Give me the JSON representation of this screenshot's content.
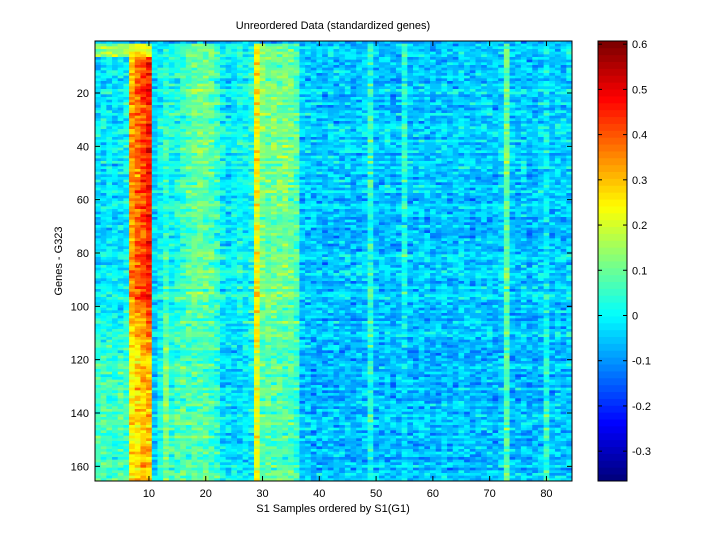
{
  "chart_data": {
    "type": "heatmap",
    "title": "Unreordered Data (standardized genes)",
    "xlabel": "S1 Samples ordered by S1(G1)",
    "ylabel": "Genes - G323",
    "n_columns": 84,
    "n_rows": 165,
    "xlim": [
      0.5,
      84.5
    ],
    "ylim": [
      0.5,
      165.5
    ],
    "x_ticks": [
      10,
      20,
      30,
      40,
      50,
      60,
      70,
      80
    ],
    "y_ticks": [
      20,
      40,
      60,
      80,
      100,
      120,
      140,
      160
    ],
    "colormap": "jet",
    "clim": [
      -0.366,
      0.607
    ],
    "colorbar": {
      "ticks": [
        -0.3,
        -0.2,
        -0.1,
        0,
        0.1,
        0.2,
        0.3,
        0.4,
        0.5,
        0.6
      ],
      "tick_labels": [
        "-0.3",
        "-0.2",
        "-0.1",
        "0",
        "0.1",
        "0.2",
        "0.3",
        "0.4",
        "0.5",
        "0.6"
      ],
      "position": "right"
    },
    "column_means_upper_rows": [
      -0.02,
      -0.02,
      -0.01,
      -0.02,
      -0.02,
      0.0,
      0.33,
      0.38,
      0.42,
      0.47,
      -0.03,
      0.0,
      0.05,
      0.02,
      0.03,
      0.05,
      0.08,
      0.1,
      0.1,
      0.1,
      0.08,
      0.05,
      0.0,
      -0.02,
      0.0,
      0.01,
      0.0,
      0.02,
      0.25,
      0.12,
      0.1,
      0.12,
      0.1,
      0.12,
      0.1,
      0.08,
      -0.05,
      -0.04,
      -0.05,
      -0.05,
      -0.06,
      -0.04,
      -0.05,
      -0.05,
      -0.04,
      -0.06,
      -0.05,
      -0.04,
      0.05,
      -0.05,
      -0.05,
      -0.04,
      -0.06,
      -0.05,
      0.03,
      -0.05,
      -0.05,
      -0.04,
      -0.05,
      -0.06,
      -0.05,
      -0.04,
      -0.05,
      -0.05,
      -0.03,
      -0.05,
      -0.06,
      -0.05,
      -0.04,
      -0.05,
      -0.05,
      -0.04,
      0.1,
      -0.05,
      -0.05,
      -0.04,
      -0.06,
      -0.05,
      -0.04,
      0.0,
      -0.05,
      -0.04,
      -0.05,
      -0.03
    ],
    "column_means_lower_rows": [
      0.05,
      0.06,
      0.06,
      0.05,
      0.07,
      0.06,
      0.25,
      0.28,
      0.3,
      0.3,
      -0.05,
      0.02,
      0.12,
      0.05,
      0.07,
      0.08,
      0.07,
      0.08,
      0.07,
      0.07,
      0.06,
      0.05,
      -0.02,
      -0.02,
      -0.03,
      -0.02,
      -0.02,
      -0.01,
      0.22,
      0.08,
      0.09,
      0.08,
      0.08,
      0.07,
      0.08,
      0.06,
      -0.06,
      -0.05,
      -0.07,
      -0.06,
      -0.06,
      -0.05,
      -0.06,
      -0.06,
      -0.05,
      -0.07,
      -0.06,
      -0.05,
      0.03,
      -0.06,
      -0.06,
      -0.05,
      -0.07,
      -0.06,
      -0.03,
      -0.06,
      -0.06,
      -0.05,
      -0.06,
      -0.07,
      -0.06,
      -0.05,
      -0.06,
      -0.06,
      -0.04,
      -0.06,
      -0.07,
      -0.06,
      -0.05,
      -0.06,
      -0.06,
      -0.05,
      0.08,
      -0.06,
      -0.06,
      -0.05,
      -0.07,
      -0.06,
      -0.05,
      0.05,
      -0.06,
      -0.05,
      -0.06,
      -0.04
    ],
    "top_rows_override": {
      "row_1_mean": -0.1,
      "rows_2_to_6_cols_1_6_mean": 0.15,
      "rows_2_to_6_cols_7_10_mean": 0.22
    },
    "noise_amplitude": 0.09,
    "noise_seed": 323
  }
}
